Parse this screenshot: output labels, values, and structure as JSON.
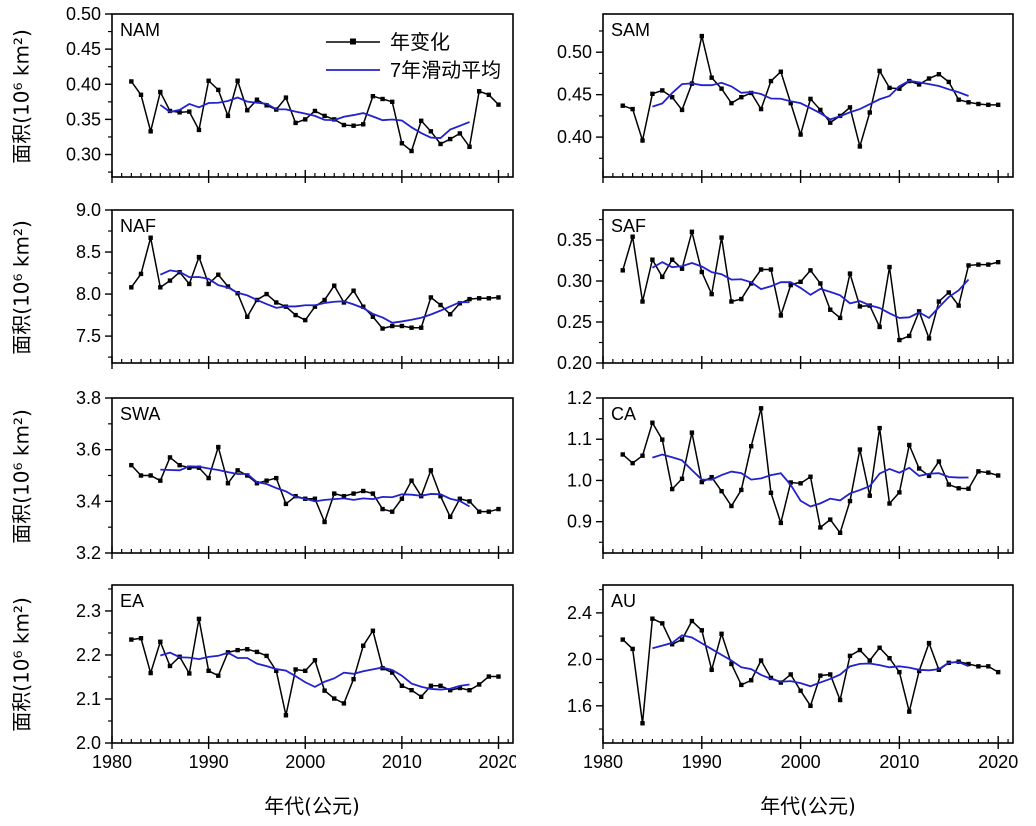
{
  "chart_data": {
    "type": "line",
    "ylabel": "面积(10⁶ km²)",
    "xlabel": "年代(公元)",
    "legend": [
      "年变化",
      "7年滑动平均"
    ],
    "annual_color": "#000000",
    "moving_avg_color": "#2222cc",
    "moving_average_window": 7,
    "xlim": [
      1980,
      2021.5
    ],
    "xticks": [
      1980,
      1990,
      2000,
      2010,
      2020
    ],
    "xtick_labels": [
      "1980",
      "1990",
      "2000",
      "2010",
      "2020"
    ],
    "x_minor_step": 1,
    "x": [
      1982,
      1983,
      1984,
      1985,
      1986,
      1987,
      1988,
      1989,
      1990,
      1991,
      1992,
      1993,
      1994,
      1995,
      1996,
      1997,
      1998,
      1999,
      2000,
      2001,
      2002,
      2003,
      2004,
      2005,
      2006,
      2007,
      2008,
      2009,
      2010,
      2011,
      2012,
      2013,
      2014,
      2015,
      2016,
      2017,
      2018,
      2019,
      2020
    ],
    "panels": [
      {
        "id": "nam",
        "label": "NAM",
        "ylim": [
          0.268,
          0.5
        ],
        "yticks": [
          0.3,
          0.35,
          0.4,
          0.45,
          0.5
        ],
        "ytick_labels": [
          "0.30",
          "0.35",
          "0.40",
          "0.45",
          "0.50"
        ],
        "y_minor_step": 0.025,
        "values": [
          0.404,
          0.385,
          0.333,
          0.389,
          0.362,
          0.36,
          0.361,
          0.335,
          0.405,
          0.392,
          0.355,
          0.405,
          0.363,
          0.378,
          0.37,
          0.364,
          0.381,
          0.345,
          0.35,
          0.362,
          0.355,
          0.35,
          0.342,
          0.341,
          0.343,
          0.383,
          0.379,
          0.375,
          0.316,
          0.305,
          0.348,
          0.333,
          0.315,
          0.322,
          0.33,
          0.311,
          0.39,
          0.385,
          0.371
        ]
      },
      {
        "id": "sam",
        "label": "SAM",
        "ylim": [
          0.353,
          0.545
        ],
        "yticks": [
          0.4,
          0.45,
          0.5
        ],
        "ytick_labels": [
          "0.40",
          "0.45",
          "0.50"
        ],
        "y_minor_step": 0.025,
        "values": [
          0.437,
          0.433,
          0.396,
          0.451,
          0.455,
          0.447,
          0.432,
          0.463,
          0.519,
          0.47,
          0.457,
          0.44,
          0.447,
          0.452,
          0.433,
          0.466,
          0.477,
          0.44,
          0.403,
          0.445,
          0.432,
          0.417,
          0.425,
          0.435,
          0.389,
          0.429,
          0.478,
          0.458,
          0.457,
          0.466,
          0.462,
          0.469,
          0.474,
          0.465,
          0.444,
          0.441,
          0.439,
          0.438,
          0.438
        ]
      },
      {
        "id": "naf",
        "label": "NAF",
        "ylim": [
          7.18,
          9.0
        ],
        "yticks": [
          7.5,
          8.0,
          8.5,
          9.0
        ],
        "ytick_labels": [
          "7.5",
          "8.0",
          "8.5",
          "9.0"
        ],
        "y_minor_step": 0.25,
        "values": [
          8.08,
          8.24,
          8.67,
          8.08,
          8.16,
          8.26,
          8.12,
          8.44,
          8.12,
          8.23,
          8.09,
          8.01,
          7.73,
          7.93,
          8.0,
          7.9,
          7.85,
          7.75,
          7.69,
          7.85,
          7.93,
          8.1,
          7.9,
          8.04,
          7.85,
          7.73,
          7.59,
          7.62,
          7.62,
          7.6,
          7.6,
          7.96,
          7.87,
          7.76,
          7.89,
          7.94,
          7.95,
          7.95,
          7.96
        ]
      },
      {
        "id": "saf",
        "label": "SAF",
        "ylim": [
          0.2,
          0.3866
        ],
        "yticks": [
          0.2,
          0.25,
          0.3,
          0.35
        ],
        "ytick_labels": [
          "0.20",
          "0.25",
          "0.30",
          "0.35"
        ],
        "y_minor_step": 0.025,
        "values": [
          0.313,
          0.354,
          0.275,
          0.326,
          0.305,
          0.326,
          0.315,
          0.36,
          0.311,
          0.284,
          0.353,
          0.275,
          0.278,
          0.297,
          0.314,
          0.314,
          0.258,
          0.295,
          0.299,
          0.313,
          0.297,
          0.265,
          0.255,
          0.309,
          0.269,
          0.27,
          0.244,
          0.317,
          0.228,
          0.233,
          0.263,
          0.23,
          0.275,
          0.286,
          0.27,
          0.319,
          0.32,
          0.32,
          0.323
        ]
      },
      {
        "id": "swa",
        "label": "SWA",
        "ylim": [
          3.2,
          3.8
        ],
        "yticks": [
          3.2,
          3.4,
          3.6,
          3.8
        ],
        "ytick_labels": [
          "3.2",
          "3.4",
          "3.6",
          "3.8"
        ],
        "y_minor_step": 0.1,
        "values": [
          3.54,
          3.5,
          3.5,
          3.48,
          3.57,
          3.54,
          3.53,
          3.53,
          3.49,
          3.61,
          3.47,
          3.52,
          3.5,
          3.47,
          3.48,
          3.49,
          3.39,
          3.42,
          3.41,
          3.41,
          3.32,
          3.43,
          3.42,
          3.43,
          3.44,
          3.43,
          3.37,
          3.36,
          3.41,
          3.48,
          3.42,
          3.52,
          3.42,
          3.34,
          3.41,
          3.4,
          3.36,
          3.36,
          3.37
        ]
      },
      {
        "id": "ca",
        "label": "CA",
        "ylim": [
          0.824,
          1.2
        ],
        "yticks": [
          0.9,
          1.0,
          1.1,
          1.2
        ],
        "ytick_labels": [
          "0.9",
          "1.0",
          "1.1",
          "1.2"
        ],
        "y_minor_step": 0.05,
        "values": [
          1.063,
          1.042,
          1.06,
          1.14,
          1.099,
          0.979,
          1.004,
          1.116,
          0.996,
          1.008,
          0.974,
          0.938,
          0.977,
          1.083,
          1.175,
          0.97,
          0.897,
          0.995,
          0.993,
          1.009,
          0.886,
          0.905,
          0.873,
          0.95,
          1.075,
          0.963,
          1.127,
          0.944,
          0.971,
          1.086,
          1.029,
          1.011,
          1.046,
          0.99,
          0.981,
          0.98,
          1.022,
          1.019,
          1.012
        ]
      },
      {
        "id": "ea",
        "label": "EA",
        "ylim": [
          2.0,
          2.359
        ],
        "yticks": [
          2.0,
          2.1,
          2.2,
          2.3
        ],
        "ytick_labels": [
          "2.0",
          "2.1",
          "2.2",
          "2.3"
        ],
        "y_minor_step": 0.05,
        "values": [
          2.235,
          2.238,
          2.159,
          2.23,
          2.175,
          2.196,
          2.158,
          2.282,
          2.164,
          2.153,
          2.206,
          2.211,
          2.213,
          2.207,
          2.198,
          2.164,
          2.063,
          2.167,
          2.164,
          2.188,
          2.119,
          2.101,
          2.09,
          2.145,
          2.221,
          2.255,
          2.17,
          2.16,
          2.13,
          2.12,
          2.105,
          2.13,
          2.13,
          2.12,
          2.125,
          2.12,
          2.133,
          2.151,
          2.151
        ]
      },
      {
        "id": "au",
        "label": "AU",
        "ylim": [
          1.28,
          2.64
        ],
        "yticks": [
          1.6,
          2.0,
          2.4
        ],
        "ytick_labels": [
          "1.6",
          "2.0",
          "2.4"
        ],
        "y_minor_step": 0.2,
        "values": [
          2.17,
          2.09,
          1.45,
          2.35,
          2.31,
          2.13,
          2.17,
          2.33,
          2.25,
          1.91,
          2.22,
          1.96,
          1.78,
          1.82,
          1.99,
          1.84,
          1.8,
          1.87,
          1.73,
          1.6,
          1.86,
          1.87,
          1.65,
          2.03,
          2.08,
          1.99,
          2.1,
          2.01,
          1.89,
          1.55,
          1.9,
          2.14,
          1.91,
          1.97,
          1.98,
          1.96,
          1.94,
          1.94,
          1.89
        ]
      }
    ]
  }
}
